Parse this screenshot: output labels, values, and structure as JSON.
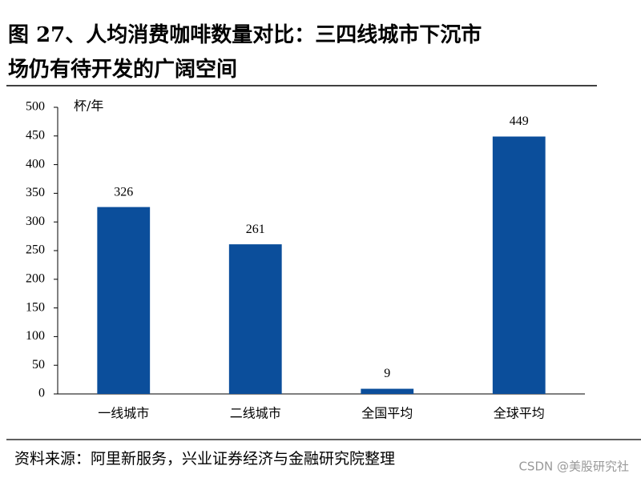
{
  "header": {
    "title_line1": "图 27、人均消费咖啡数量对比：三四线城市下沉市",
    "title_line2": "场仍有待开发的广阔空间"
  },
  "chart_data": {
    "type": "bar",
    "y_unit_label": "杯/年",
    "categories": [
      "一线城市",
      "二线城市",
      "全国平均",
      "全球平均"
    ],
    "values": [
      326,
      261,
      9,
      449
    ],
    "color": "#0b4e9b",
    "ylim": [
      0,
      500
    ],
    "yticks": [
      0,
      50,
      100,
      150,
      200,
      250,
      300,
      350,
      400,
      450,
      500
    ],
    "grid": false
  },
  "footer": {
    "source": "资料来源：阿里新服务，兴业证券经济与金融研究院整理",
    "watermark": "CSDN @美股研究社"
  }
}
